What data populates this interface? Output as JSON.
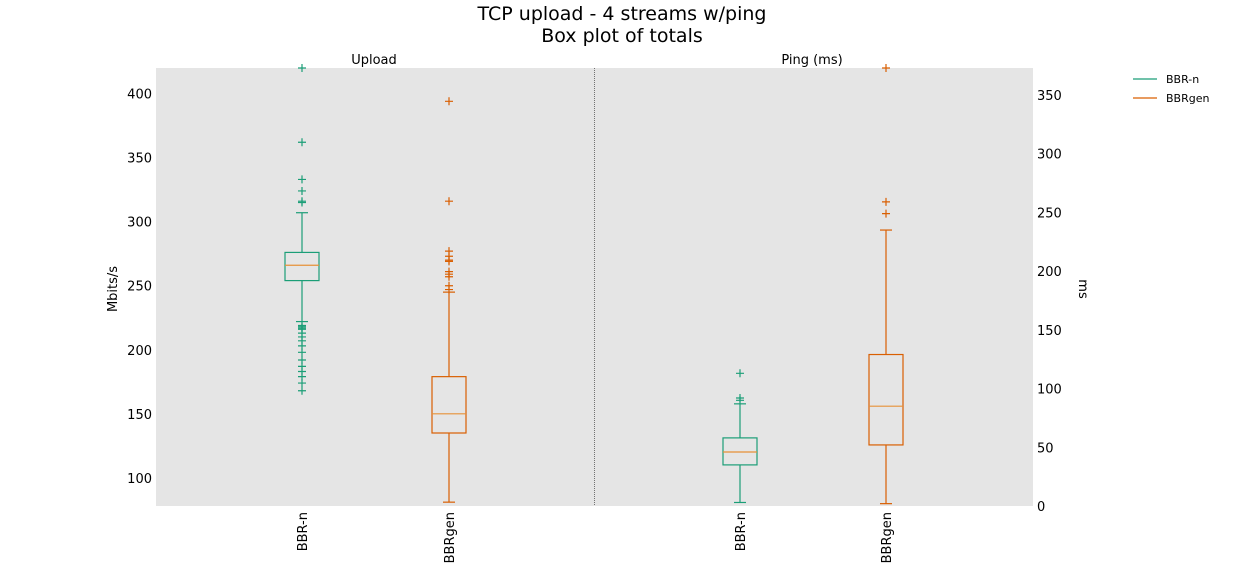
{
  "chart_data": {
    "type": "box",
    "title": "TCP upload - 4 streams w/ping",
    "subtitle": "Box plot of totals",
    "colors": {
      "BBR-n": "#1b9e77",
      "BBRgen": "#d95f02",
      "median": "#e69138",
      "plot_bg": "#e5e5e5"
    },
    "legend": {
      "placement": "outside-top-right",
      "entries": [
        "BBR-n",
        "BBRgen"
      ]
    },
    "grid": false,
    "panels": [
      {
        "title": "Upload",
        "ylabel": "Mbits/s",
        "axis_side": "left",
        "ylim": [
          78,
          420
        ],
        "yticks": [
          100,
          150,
          200,
          250,
          300,
          350,
          400
        ],
        "categories": [
          "BBR-n",
          "BBRgen"
        ],
        "boxes": [
          {
            "name": "BBR-n",
            "whisker_low": 222,
            "q1": 254,
            "median": 266,
            "q3": 276,
            "whisker_high": 307,
            "fliers": [
              420,
              362,
              333,
              324,
              316,
              315,
              219,
              218,
              217,
              216,
              213,
              210,
              207,
              203,
              198,
              192,
              187,
              183,
              179,
              174,
              168
            ]
          },
          {
            "name": "BBRgen",
            "whisker_low": 81,
            "q1": 135,
            "median": 150,
            "q3": 179,
            "whisker_high": 245,
            "fliers": [
              394,
              316,
              277,
              273,
              270,
              269,
              261,
              259,
              257,
              250,
              247
            ]
          }
        ]
      },
      {
        "title": "Ping (ms)",
        "ylabel": "ms",
        "axis_side": "right",
        "ylim": [
          0,
          373
        ],
        "yticks": [
          0,
          50,
          100,
          150,
          200,
          250,
          300,
          350
        ],
        "categories": [
          "BBR-n",
          "BBRgen"
        ],
        "boxes": [
          {
            "name": "BBR-n",
            "whisker_low": 3,
            "q1": 35,
            "median": 46,
            "q3": 58,
            "whisker_high": 87,
            "fliers": [
              113,
              92,
              90
            ]
          },
          {
            "name": "BBRgen",
            "whisker_low": 2,
            "q1": 52,
            "median": 85,
            "q3": 129,
            "whisker_high": 235,
            "fliers": [
              373,
              259,
              249
            ]
          }
        ]
      }
    ]
  }
}
